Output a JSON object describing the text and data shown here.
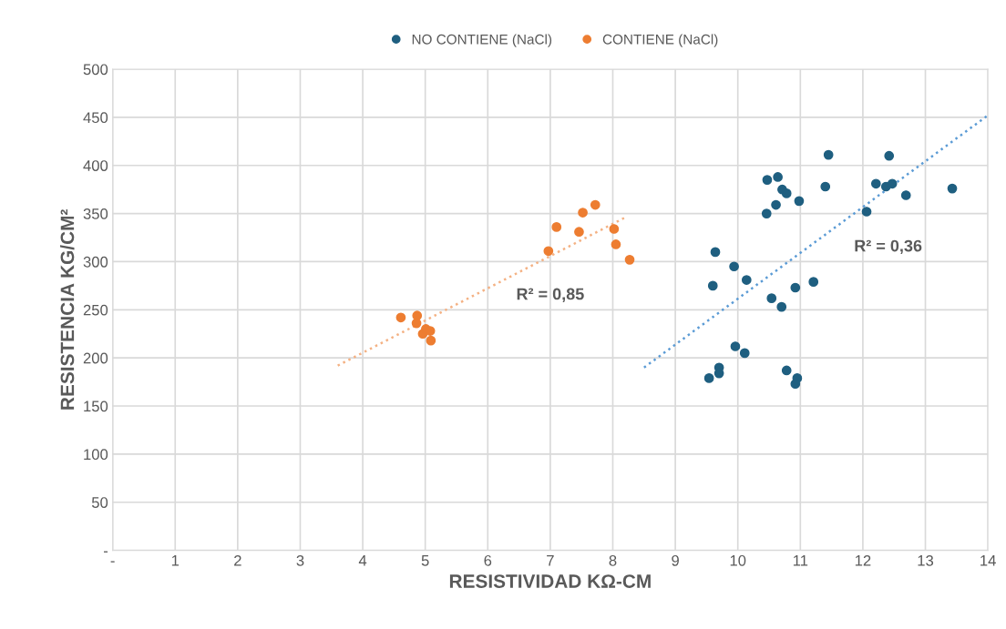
{
  "chart_data": {
    "type": "scatter",
    "xlabel": "RESISTIVIDAD KΩ-CM",
    "ylabel": "RESISTENCIA KG/CM²",
    "xlim": [
      0,
      14
    ],
    "ylim": [
      0,
      500
    ],
    "xticks": [
      {
        "value": 0,
        "label": "-"
      },
      1,
      2,
      3,
      4,
      5,
      6,
      7,
      8,
      9,
      10,
      11,
      12,
      13,
      14
    ],
    "yticks": [
      {
        "value": 0,
        "label": "-"
      },
      50,
      100,
      150,
      200,
      250,
      300,
      350,
      400,
      450,
      500
    ],
    "grid": true,
    "legend": "top",
    "marker": "circle",
    "series": [
      {
        "name": "NO CONTIENE (NaCl)",
        "color": "#1f5f80",
        "x": [
          11.45,
          12.42,
          10.47,
          10.64,
          10.71,
          10.78,
          10.98,
          10.61,
          10.46,
          11.4,
          12.21,
          12.37,
          12.47,
          12.69,
          13.43,
          12.06,
          9.64,
          9.94,
          9.6,
          10.14,
          11.21,
          10.54,
          10.92,
          10.7,
          9.96,
          10.11,
          9.7,
          9.7,
          9.54,
          10.78,
          10.95,
          10.92
        ],
        "values": [
          411,
          410,
          385,
          388,
          375,
          371,
          363,
          359,
          350,
          378,
          381,
          378,
          381,
          369,
          376,
          352,
          310,
          295,
          275,
          281,
          279,
          262,
          273,
          253,
          212,
          205,
          190,
          184,
          179,
          187,
          179,
          173
        ]
      },
      {
        "name": "CONTIENE (NaCl)",
        "color": "#ed7d31",
        "x": [
          4.61,
          4.87,
          4.86,
          4.96,
          5.01,
          5.08,
          5.09,
          6.97,
          7.1,
          7.46,
          7.52,
          7.72,
          8.02,
          8.05,
          8.27
        ],
        "values": [
          242,
          244,
          236,
          225,
          230,
          228,
          218,
          311,
          336,
          331,
          351,
          359,
          334,
          318,
          302
        ]
      },
      {
        "type": "line",
        "line_style": "dotted",
        "marker": "none",
        "color": "#f4b183",
        "x": [
          3.6,
          8.2
        ],
        "values": [
          192,
          346
        ]
      },
      {
        "type": "line",
        "line_style": "dotted",
        "marker": "none",
        "color": "#5b9bd5",
        "x": [
          8.5,
          14
        ],
        "values": [
          190,
          452
        ]
      }
    ],
    "annotations": [
      "R² = 0,85",
      "R² = 0,36"
    ]
  }
}
